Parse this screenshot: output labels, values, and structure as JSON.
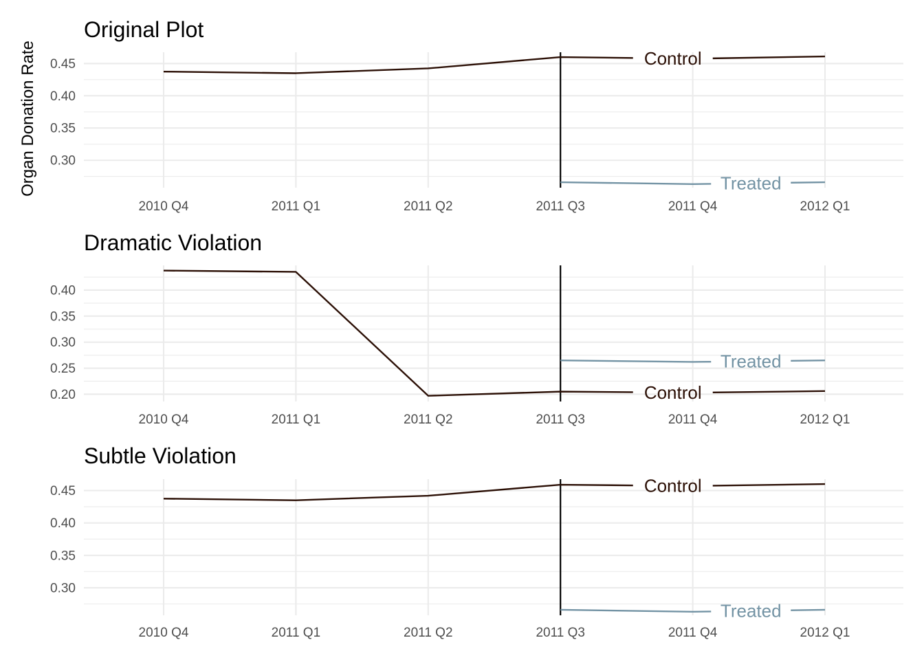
{
  "chart_data": [
    {
      "type": "line",
      "title": "Original Plot",
      "ylabel": "Organ Donation Rate",
      "categories": [
        "2010 Q4",
        "2011 Q1",
        "2011 Q2",
        "2011 Q3",
        "2011 Q4",
        "2012 Q1"
      ],
      "yticks": [
        "0.30",
        "0.35",
        "0.40",
        "0.45"
      ],
      "ylim": [
        0.2575,
        0.4675
      ],
      "vline": "2011 Q3",
      "series": [
        {
          "name": "Control",
          "color": "#2b0f05",
          "x": [
            "2010 Q4",
            "2011 Q1",
            "2011 Q2",
            "2011 Q3",
            "2011 Q4",
            "2012 Q1"
          ],
          "values": [
            0.4375,
            0.435,
            0.4425,
            0.46,
            0.4575,
            0.461
          ]
        },
        {
          "name": "Treated",
          "color": "#7393a4",
          "x": [
            "2011 Q3",
            "2011 Q4",
            "2012 Q1"
          ],
          "values": [
            0.266,
            0.263,
            0.266
          ]
        }
      ],
      "grid": true,
      "legend": "direct-labels"
    },
    {
      "type": "line",
      "title": "Dramatic Violation",
      "ylabel": "",
      "categories": [
        "2010 Q4",
        "2011 Q1",
        "2011 Q2",
        "2011 Q3",
        "2011 Q4",
        "2012 Q1"
      ],
      "yticks": [
        "0.20",
        "0.25",
        "0.30",
        "0.35",
        "0.40"
      ],
      "ylim": [
        0.186,
        0.4475
      ],
      "vline": "2011 Q3",
      "series": [
        {
          "name": "Control",
          "color": "#2b0f05",
          "x": [
            "2010 Q4",
            "2011 Q1",
            "2011 Q2",
            "2011 Q3",
            "2011 Q4",
            "2012 Q1"
          ],
          "values": [
            0.4375,
            0.435,
            0.197,
            0.205,
            0.203,
            0.206
          ]
        },
        {
          "name": "Treated",
          "color": "#7393a4",
          "x": [
            "2011 Q3",
            "2011 Q4",
            "2012 Q1"
          ],
          "values": [
            0.265,
            0.262,
            0.265
          ]
        }
      ],
      "grid": true,
      "legend": "direct-labels"
    },
    {
      "type": "line",
      "title": "Subtle Violation",
      "ylabel": "",
      "categories": [
        "2010 Q4",
        "2011 Q1",
        "2011 Q2",
        "2011 Q3",
        "2011 Q4",
        "2012 Q1"
      ],
      "yticks": [
        "0.30",
        "0.35",
        "0.40",
        "0.45"
      ],
      "ylim": [
        0.2575,
        0.4675
      ],
      "vline": "2011 Q3",
      "series": [
        {
          "name": "Control",
          "color": "#2b0f05",
          "x": [
            "2010 Q4",
            "2011 Q1",
            "2011 Q2",
            "2011 Q3",
            "2011 Q4",
            "2012 Q1"
          ],
          "values": [
            0.4375,
            0.435,
            0.442,
            0.459,
            0.457,
            0.46
          ]
        },
        {
          "name": "Treated",
          "color": "#7393a4",
          "x": [
            "2011 Q3",
            "2011 Q4",
            "2012 Q1"
          ],
          "values": [
            0.266,
            0.263,
            0.266
          ]
        }
      ],
      "grid": true,
      "legend": "direct-labels"
    }
  ]
}
